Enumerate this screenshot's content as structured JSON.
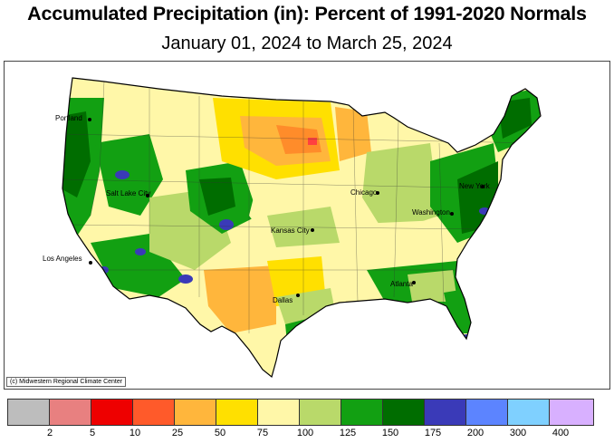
{
  "title": "Accumulated Precipitation (in): Percent of 1991-2020 Normals",
  "subtitle": "January 01, 2024 to March 25, 2024",
  "credit": "(c) Midwestern Regional Climate Center",
  "cities": {
    "portland": "Portland",
    "salt_lake_city": "Salt Lake City",
    "los_angeles": "Los Angeles",
    "kansas_city": "Kansas City",
    "chicago": "Chicago",
    "new_york": "New York",
    "washington": "Washington",
    "dallas": "Dallas",
    "atlanta": "Atlanta"
  },
  "legend": {
    "colors": [
      "#bdbdbd",
      "#e88080",
      "#ee0000",
      "#ff5a2a",
      "#ffb63c",
      "#ffe000",
      "#fff7a8",
      "#b9d96a",
      "#12a012",
      "#006d00",
      "#3a3ab8",
      "#5c84ff",
      "#7fd0ff",
      "#d8b0ff"
    ],
    "labels": [
      "2",
      "5",
      "10",
      "25",
      "50",
      "75",
      "100",
      "125",
      "150",
      "175",
      "200",
      "300",
      "400"
    ]
  },
  "map_colors": {
    "base": "#fff7a8",
    "light_green": "#b9d96a",
    "green": "#12a012",
    "dark_green": "#006d00",
    "yellow": "#ffe000",
    "orange": "#ffb63c",
    "dark_orange": "#ff8c2a",
    "red": "#ff4040",
    "blue": "#3a3ab8",
    "light_blue": "#5c84ff"
  }
}
